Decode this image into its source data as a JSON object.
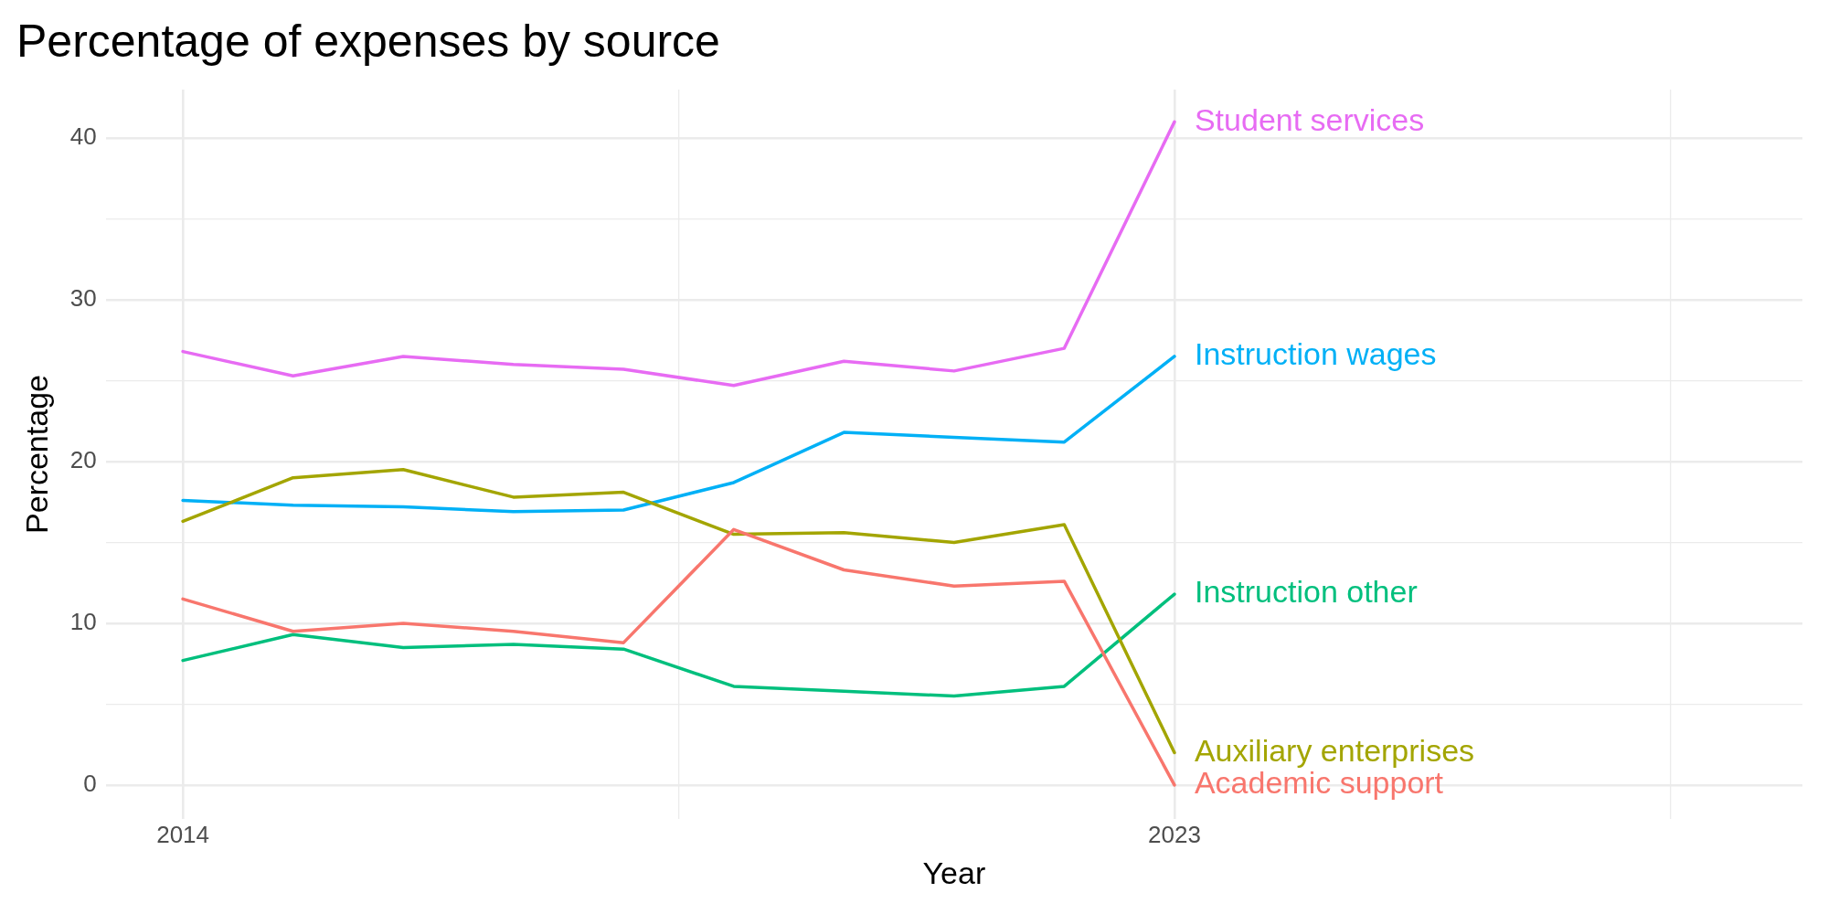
{
  "chart_data": {
    "type": "line",
    "title": "Percentage of expenses by source",
    "xlabel": "Year",
    "ylabel": "Percentage",
    "x": [
      2014,
      2015,
      2016,
      2017,
      2018,
      2019,
      2020,
      2021,
      2022,
      2023
    ],
    "xlim": [
      2013.3,
      2028.7
    ],
    "xticks": [
      2014,
      {
        "value": 2018.5,
        "label": null
      },
      2023,
      {
        "value": 2027.5,
        "label": null
      }
    ],
    "ylim": [
      -2.1,
      43
    ],
    "yticks": [
      0,
      {
        "value": 5,
        "label": null
      },
      10,
      {
        "value": 15,
        "label": null
      },
      20,
      {
        "value": 25,
        "label": null
      },
      30,
      {
        "value": 35,
        "label": null
      },
      40
    ],
    "grid": true,
    "legend": false,
    "marker": "none",
    "line_style": "solid",
    "series": [
      {
        "name": "Academic support",
        "color": "#f8766d",
        "values": [
          11.5,
          9.5,
          10.0,
          9.5,
          8.8,
          15.8,
          13.3,
          12.3,
          12.6,
          0
        ]
      },
      {
        "name": "Auxiliary enterprises",
        "color": "#a3a500",
        "values": [
          16.3,
          19.0,
          19.5,
          17.8,
          18.1,
          15.5,
          15.6,
          15.0,
          16.1,
          2.0
        ]
      },
      {
        "name": "Instruction other",
        "color": "#00bf7d",
        "values": [
          7.7,
          9.3,
          8.5,
          8.7,
          8.4,
          6.1,
          5.8,
          5.5,
          6.1,
          11.8
        ]
      },
      {
        "name": "Instruction wages",
        "color": "#00b0f6",
        "values": [
          17.6,
          17.3,
          17.2,
          16.9,
          17.0,
          18.7,
          21.8,
          21.5,
          21.2,
          26.5
        ]
      },
      {
        "name": "Student services",
        "color": "#e76bf3",
        "values": [
          26.8,
          25.3,
          26.5,
          26.0,
          25.7,
          24.7,
          26.2,
          25.6,
          27.0,
          41.0
        ]
      }
    ]
  }
}
